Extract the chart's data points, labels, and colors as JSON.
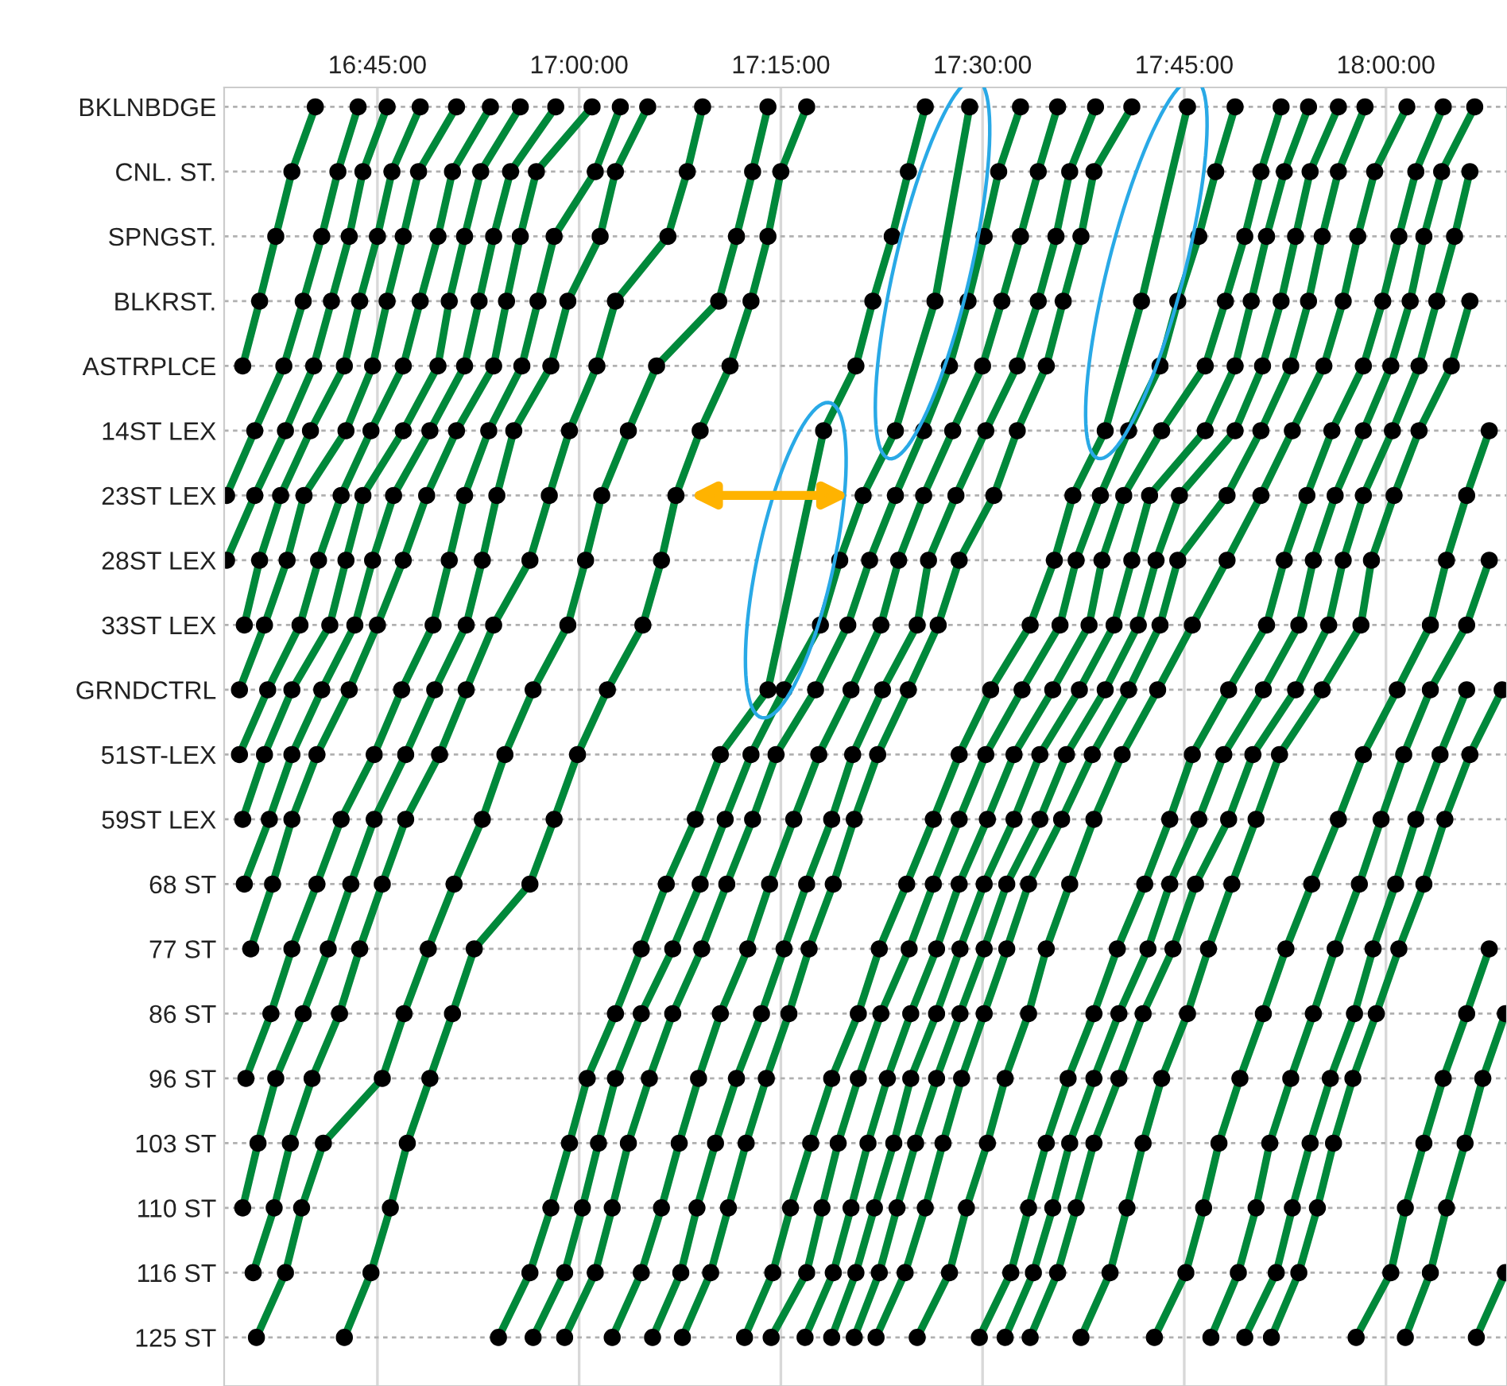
{
  "chart_data": {
    "type": "line",
    "orientation": "horizontal",
    "xlim": [
      16.56,
      18.15
    ],
    "xticks": [
      {
        "value": 16.75,
        "label": "16:45:00"
      },
      {
        "value": 17.0,
        "label": "17:00:00"
      },
      {
        "value": 17.25,
        "label": "17:15:00"
      },
      {
        "value": 17.5,
        "label": "17:30:00"
      },
      {
        "value": 17.75,
        "label": "17:45:00"
      },
      {
        "value": 18.0,
        "label": "18:00:00"
      }
    ],
    "categories": [
      "BKLNBDGE",
      "CNL. ST.",
      "SPNGST.",
      "BLKRST.",
      "ASTRPLCE",
      "14ST LEX",
      "23ST LEX",
      "28ST LEX",
      "33ST LEX",
      "GRNDCTRL",
      "51ST-LEX",
      "59ST LEX",
      "68 ST",
      "77 ST",
      "86 ST",
      "96 ST",
      "103 ST",
      "110 ST",
      "116 ST",
      "125 ST"
    ],
    "grid": true,
    "marker": "circle",
    "line_style": "solid",
    "series": [
      {
        "color": "#00883a",
        "values": [
          16.673,
          16.644,
          16.624,
          16.604,
          16.583,
          null,
          null,
          null,
          null,
          null,
          null,
          null,
          null,
          null,
          null,
          null,
          null,
          null,
          null,
          null
        ]
      },
      {
        "color": "#00883a",
        "values": [
          16.726,
          16.701,
          16.681,
          16.658,
          16.634,
          16.598,
          16.563,
          null,
          null,
          null,
          null,
          null,
          null,
          null,
          null,
          null,
          null,
          null,
          null,
          null
        ]
      },
      {
        "color": "#00883a",
        "values": [
          16.762,
          16.732,
          16.715,
          16.693,
          16.671,
          16.636,
          16.598,
          16.563,
          null,
          null,
          null,
          null,
          null,
          null,
          null,
          null,
          null,
          null,
          null,
          null
        ]
      },
      {
        "color": "#00883a",
        "values": [
          16.803,
          16.768,
          16.75,
          16.728,
          16.709,
          16.667,
          16.63,
          16.604,
          16.585,
          null,
          null,
          null,
          null,
          null,
          null,
          null,
          null,
          null,
          null,
          null
        ]
      },
      {
        "color": "#00883a",
        "values": [
          16.848,
          16.801,
          16.782,
          16.762,
          16.744,
          16.711,
          16.659,
          16.638,
          16.61,
          16.579,
          null,
          null,
          null,
          null,
          null,
          null,
          null,
          null,
          null,
          null
        ]
      },
      {
        "color": "#00883a",
        "values": [
          16.89,
          16.843,
          16.825,
          16.803,
          16.782,
          16.742,
          16.705,
          16.677,
          16.654,
          16.614,
          16.579,
          null,
          null,
          null,
          null,
          null,
          null,
          null,
          null,
          null
        ]
      },
      {
        "color": "#00883a",
        "values": [
          16.927,
          16.878,
          16.858,
          16.839,
          16.825,
          16.782,
          16.732,
          16.711,
          16.691,
          16.644,
          16.61,
          16.583,
          null,
          null,
          null,
          null,
          null,
          null,
          null,
          null
        ]
      },
      {
        "color": "#00883a",
        "values": [
          16.971,
          16.915,
          16.894,
          16.876,
          16.858,
          16.815,
          16.77,
          16.744,
          16.722,
          16.681,
          16.644,
          16.616,
          16.585,
          null,
          null,
          null,
          null,
          null,
          null,
          null
        ]
      },
      {
        "color": "#00883a",
        "values": [
          17.016,
          16.947,
          16.927,
          16.91,
          16.894,
          16.848,
          16.811,
          16.782,
          16.75,
          16.715,
          16.675,
          16.644,
          16.62,
          16.593,
          null,
          null,
          null,
          null,
          null,
          null
        ]
      },
      {
        "color": "#00883a",
        "values": [
          17.051,
          17.02,
          16.969,
          16.949,
          16.929,
          16.888,
          16.858,
          16.839,
          16.819,
          16.78,
          16.746,
          16.705,
          16.675,
          16.644,
          16.618,
          16.587,
          null,
          null,
          null,
          null
        ]
      },
      {
        "color": "#00883a",
        "values": [
          17.085,
          17.045,
          17.026,
          16.986,
          16.965,
          16.919,
          16.898,
          16.88,
          16.86,
          16.821,
          16.785,
          16.746,
          16.717,
          16.689,
          16.658,
          16.624,
          16.602,
          16.583,
          null,
          null
        ]
      },
      {
        "color": "#00883a",
        "values": [
          17.153,
          17.134,
          17.11,
          17.045,
          17.022,
          16.988,
          16.963,
          16.939,
          16.894,
          16.86,
          16.827,
          16.785,
          16.756,
          16.728,
          16.703,
          16.669,
          16.642,
          16.622,
          16.596,
          null
        ]
      },
      {
        "color": "#00883a",
        "values": [
          17.234,
          17.215,
          17.195,
          17.173,
          17.096,
          17.061,
          17.028,
          17.008,
          16.986,
          16.943,
          16.908,
          16.88,
          16.845,
          16.813,
          16.783,
          16.756,
          16.683,
          16.656,
          16.636,
          16.6
        ]
      },
      {
        "color": "#00883a",
        "values": [
          17.282,
          17.25,
          17.234,
          17.213,
          17.187,
          17.15,
          17.12,
          17.102,
          17.079,
          17.035,
          16.998,
          16.969,
          16.939,
          16.87,
          16.843,
          16.815,
          16.787,
          16.766,
          16.742,
          16.709
        ]
      },
      {
        "color": "#00883a",
        "values": [
          17.429,
          17.408,
          17.388,
          17.364,
          17.343,
          17.303,
          null,
          null,
          null,
          17.234,
          17.175,
          17.144,
          17.108,
          17.077,
          17.045,
          17.01,
          16.988,
          16.965,
          16.939,
          16.9
        ]
      },
      {
        "color": "#00883a",
        "values": [
          17.484,
          null,
          null,
          17.441,
          null,
          17.392,
          17.352,
          17.323,
          17.299,
          17.254,
          17.213,
          17.181,
          17.15,
          17.116,
          17.077,
          17.045,
          17.024,
          17.004,
          16.982,
          16.943
        ]
      },
      {
        "color": "#00883a",
        "values": [
          17.547,
          17.52,
          17.502,
          17.482,
          17.459,
          17.427,
          17.392,
          17.36,
          17.333,
          17.293,
          17.244,
          17.215,
          17.183,
          17.152,
          17.116,
          17.087,
          17.061,
          17.041,
          17.02,
          16.982
        ]
      },
      {
        "color": "#00883a",
        "values": [
          17.593,
          17.569,
          17.547,
          17.524,
          17.5,
          17.463,
          17.427,
          17.396,
          17.374,
          17.337,
          17.297,
          17.266,
          17.236,
          17.209,
          17.175,
          17.148,
          17.124,
          17.102,
          17.077,
          17.041
        ]
      },
      {
        "color": "#00883a",
        "values": [
          17.64,
          17.608,
          17.591,
          17.569,
          17.543,
          17.504,
          17.467,
          17.433,
          17.419,
          17.376,
          17.339,
          17.313,
          17.282,
          17.254,
          17.226,
          17.195,
          17.169,
          17.146,
          17.126,
          17.091
        ]
      },
      {
        "color": "#00883a",
        "values": [
          17.685,
          17.638,
          17.622,
          17.6,
          17.579,
          17.543,
          17.514,
          17.471,
          17.445,
          17.408,
          17.37,
          17.341,
          17.315,
          17.285,
          17.26,
          17.232,
          17.207,
          17.185,
          17.163,
          17.128
        ]
      },
      {
        "color": "#00883a",
        "values": [
          17.754,
          null,
          null,
          17.697,
          null,
          17.652,
          17.612,
          17.589,
          17.559,
          17.51,
          17.471,
          17.439,
          17.406,
          17.372,
          17.346,
          17.313,
          17.287,
          17.262,
          17.24,
          17.205
        ]
      },
      {
        "color": "#00883a",
        "values": [
          17.813,
          17.789,
          17.768,
          17.742,
          17.72,
          17.681,
          17.646,
          17.616,
          17.596,
          17.549,
          17.504,
          17.471,
          17.439,
          17.409,
          17.374,
          17.346,
          17.321,
          17.301,
          17.282,
          17.238
        ]
      },
      {
        "color": "#00883a",
        "values": [
          17.87,
          17.845,
          17.825,
          17.801,
          17.776,
          17.722,
          17.675,
          17.648,
          17.632,
          17.587,
          17.539,
          17.506,
          17.471,
          17.443,
          17.411,
          17.382,
          17.358,
          17.337,
          17.315,
          17.28
        ]
      },
      {
        "color": "#00883a",
        "values": [
          17.904,
          17.874,
          17.852,
          17.833,
          17.813,
          17.776,
          17.707,
          17.685,
          17.663,
          17.62,
          17.571,
          17.539,
          17.502,
          17.472,
          17.443,
          17.411,
          17.39,
          17.366,
          17.343,
          17.313
        ]
      },
      {
        "color": "#00883a",
        "values": [
          17.941,
          17.906,
          17.888,
          17.87,
          17.847,
          17.813,
          17.744,
          17.715,
          17.693,
          17.652,
          17.604,
          17.571,
          17.53,
          17.502,
          17.472,
          17.443,
          17.417,
          17.394,
          17.372,
          17.341
        ]
      },
      {
        "color": "#00883a",
        "values": [
          17.974,
          17.941,
          17.921,
          17.904,
          17.882,
          17.845,
          17.803,
          17.742,
          17.72,
          17.681,
          17.636,
          17.598,
          17.557,
          17.53,
          17.502,
          17.474,
          17.451,
          17.429,
          17.404,
          17.368
        ]
      },
      {
        "color": "#00883a",
        "values": [
          18.026,
          17.986,
          17.965,
          17.947,
          17.923,
          17.884,
          17.845,
          17.803,
          17.76,
          17.717,
          17.673,
          17.638,
          17.608,
          17.579,
          17.557,
          17.528,
          17.506,
          17.48,
          17.459,
          17.419
        ]
      },
      {
        "color": "#00883a",
        "values": [
          18.071,
          18.037,
          18.016,
          17.996,
          17.972,
          17.933,
          17.902,
          17.874,
          17.852,
          17.805,
          17.76,
          17.732,
          17.701,
          17.667,
          17.638,
          17.606,
          17.579,
          17.557,
          17.535,
          17.496
        ]
      },
      {
        "color": "#00883a",
        "values": [
          18.11,
          18.069,
          18.047,
          18.03,
          18.006,
          17.972,
          17.937,
          17.91,
          17.892,
          17.848,
          17.799,
          17.768,
          17.732,
          17.705,
          17.669,
          17.638,
          17.608,
          17.587,
          17.563,
          17.528
        ]
      },
      {
        "color": "#00883a",
        "values": [
          null,
          18.104,
          18.085,
          18.063,
          18.041,
          18.008,
          17.972,
          17.947,
          17.929,
          17.888,
          17.835,
          17.805,
          17.764,
          17.736,
          17.699,
          17.669,
          17.638,
          17.616,
          17.593,
          17.559
        ]
      },
      {
        "color": "#00883a",
        "values": [
          null,
          null,
          null,
          18.104,
          18.081,
          18.041,
          18.01,
          17.982,
          17.969,
          17.921,
          17.868,
          17.839,
          17.809,
          17.78,
          17.754,
          17.722,
          17.699,
          17.679,
          17.658,
          17.622
        ]
      },
      {
        "color": "#00883a",
        "values": [
          null,
          null,
          null,
          null,
          null,
          18.128,
          18.1,
          18.075,
          18.055,
          18.014,
          17.972,
          17.941,
          17.908,
          17.876,
          17.848,
          17.819,
          17.793,
          17.774,
          17.752,
          17.713
        ]
      },
      {
        "color": "#00883a",
        "values": [
          null,
          null,
          null,
          null,
          null,
          null,
          null,
          18.128,
          18.1,
          18.055,
          18.022,
          17.994,
          17.967,
          17.937,
          17.91,
          17.882,
          17.856,
          17.839,
          17.817,
          17.783
        ]
      },
      {
        "color": "#00883a",
        "values": [
          null,
          null,
          null,
          null,
          null,
          null,
          null,
          null,
          null,
          18.1,
          18.067,
          18.037,
          18.012,
          17.984,
          17.961,
          17.931,
          17.906,
          17.884,
          17.864,
          17.825
        ]
      },
      {
        "color": "#00883a",
        "values": [
          null,
          null,
          null,
          null,
          null,
          null,
          null,
          null,
          null,
          18.144,
          18.104,
          18.073,
          18.047,
          18.016,
          17.988,
          17.959,
          17.935,
          17.915,
          17.892,
          17.858
        ]
      },
      {
        "color": "#00883a",
        "values": [
          null,
          null,
          null,
          null,
          null,
          null,
          null,
          null,
          null,
          null,
          null,
          null,
          null,
          18.128,
          18.1,
          18.071,
          18.047,
          18.024,
          18.006,
          17.963
        ]
      },
      {
        "color": "#00883a",
        "values": [
          null,
          null,
          null,
          null,
          null,
          null,
          null,
          null,
          null,
          null,
          null,
          null,
          null,
          null,
          18.148,
          18.12,
          18.098,
          18.075,
          18.055,
          18.024
        ]
      },
      {
        "color": "#00883a",
        "values": [
          null,
          null,
          null,
          null,
          null,
          null,
          null,
          null,
          null,
          null,
          null,
          null,
          null,
          null,
          null,
          null,
          null,
          null,
          18.148,
          18.112
        ]
      }
    ]
  }
}
